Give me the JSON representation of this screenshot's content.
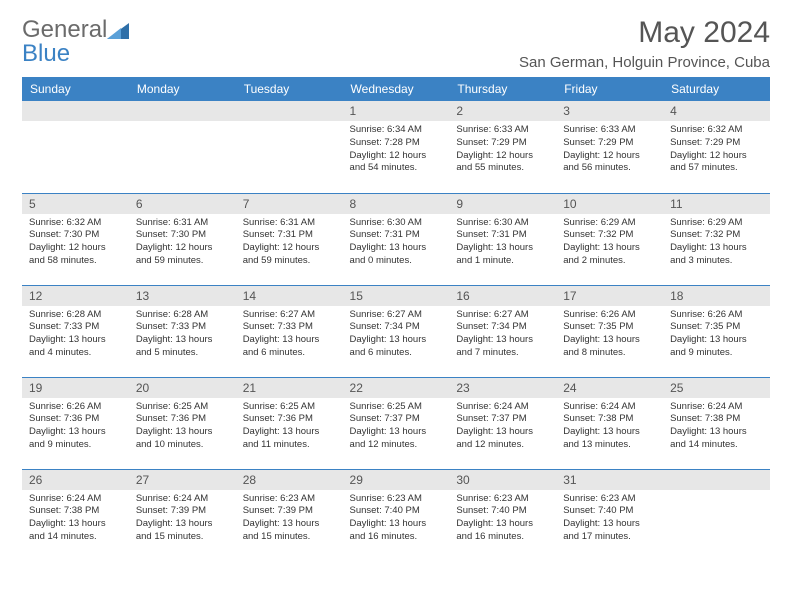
{
  "brand": {
    "part1": "General",
    "part2": "Blue"
  },
  "title": "May 2024",
  "location": "San German, Holguin Province, Cuba",
  "colors": {
    "header_bg": "#3b82c4",
    "header_text": "#ffffff",
    "daynum_bg": "#e7e7e7",
    "text": "#333333",
    "muted": "#555555",
    "row_border": "#3b82c4",
    "page_bg": "#ffffff"
  },
  "typography": {
    "title_fontsize": 30,
    "location_fontsize": 15,
    "dayheader_fontsize": 12,
    "daynum_fontsize": 12,
    "body_fontsize": 9.5
  },
  "dayHeaders": [
    "Sunday",
    "Monday",
    "Tuesday",
    "Wednesday",
    "Thursday",
    "Friday",
    "Saturday"
  ],
  "weeks": [
    [
      null,
      null,
      null,
      {
        "n": "1",
        "sr": "Sunrise: 6:34 AM",
        "ss": "Sunset: 7:28 PM",
        "dl1": "Daylight: 12 hours",
        "dl2": "and 54 minutes."
      },
      {
        "n": "2",
        "sr": "Sunrise: 6:33 AM",
        "ss": "Sunset: 7:29 PM",
        "dl1": "Daylight: 12 hours",
        "dl2": "and 55 minutes."
      },
      {
        "n": "3",
        "sr": "Sunrise: 6:33 AM",
        "ss": "Sunset: 7:29 PM",
        "dl1": "Daylight: 12 hours",
        "dl2": "and 56 minutes."
      },
      {
        "n": "4",
        "sr": "Sunrise: 6:32 AM",
        "ss": "Sunset: 7:29 PM",
        "dl1": "Daylight: 12 hours",
        "dl2": "and 57 minutes."
      }
    ],
    [
      {
        "n": "5",
        "sr": "Sunrise: 6:32 AM",
        "ss": "Sunset: 7:30 PM",
        "dl1": "Daylight: 12 hours",
        "dl2": "and 58 minutes."
      },
      {
        "n": "6",
        "sr": "Sunrise: 6:31 AM",
        "ss": "Sunset: 7:30 PM",
        "dl1": "Daylight: 12 hours",
        "dl2": "and 59 minutes."
      },
      {
        "n": "7",
        "sr": "Sunrise: 6:31 AM",
        "ss": "Sunset: 7:31 PM",
        "dl1": "Daylight: 12 hours",
        "dl2": "and 59 minutes."
      },
      {
        "n": "8",
        "sr": "Sunrise: 6:30 AM",
        "ss": "Sunset: 7:31 PM",
        "dl1": "Daylight: 13 hours",
        "dl2": "and 0 minutes."
      },
      {
        "n": "9",
        "sr": "Sunrise: 6:30 AM",
        "ss": "Sunset: 7:31 PM",
        "dl1": "Daylight: 13 hours",
        "dl2": "and 1 minute."
      },
      {
        "n": "10",
        "sr": "Sunrise: 6:29 AM",
        "ss": "Sunset: 7:32 PM",
        "dl1": "Daylight: 13 hours",
        "dl2": "and 2 minutes."
      },
      {
        "n": "11",
        "sr": "Sunrise: 6:29 AM",
        "ss": "Sunset: 7:32 PM",
        "dl1": "Daylight: 13 hours",
        "dl2": "and 3 minutes."
      }
    ],
    [
      {
        "n": "12",
        "sr": "Sunrise: 6:28 AM",
        "ss": "Sunset: 7:33 PM",
        "dl1": "Daylight: 13 hours",
        "dl2": "and 4 minutes."
      },
      {
        "n": "13",
        "sr": "Sunrise: 6:28 AM",
        "ss": "Sunset: 7:33 PM",
        "dl1": "Daylight: 13 hours",
        "dl2": "and 5 minutes."
      },
      {
        "n": "14",
        "sr": "Sunrise: 6:27 AM",
        "ss": "Sunset: 7:33 PM",
        "dl1": "Daylight: 13 hours",
        "dl2": "and 6 minutes."
      },
      {
        "n": "15",
        "sr": "Sunrise: 6:27 AM",
        "ss": "Sunset: 7:34 PM",
        "dl1": "Daylight: 13 hours",
        "dl2": "and 6 minutes."
      },
      {
        "n": "16",
        "sr": "Sunrise: 6:27 AM",
        "ss": "Sunset: 7:34 PM",
        "dl1": "Daylight: 13 hours",
        "dl2": "and 7 minutes."
      },
      {
        "n": "17",
        "sr": "Sunrise: 6:26 AM",
        "ss": "Sunset: 7:35 PM",
        "dl1": "Daylight: 13 hours",
        "dl2": "and 8 minutes."
      },
      {
        "n": "18",
        "sr": "Sunrise: 6:26 AM",
        "ss": "Sunset: 7:35 PM",
        "dl1": "Daylight: 13 hours",
        "dl2": "and 9 minutes."
      }
    ],
    [
      {
        "n": "19",
        "sr": "Sunrise: 6:26 AM",
        "ss": "Sunset: 7:36 PM",
        "dl1": "Daylight: 13 hours",
        "dl2": "and 9 minutes."
      },
      {
        "n": "20",
        "sr": "Sunrise: 6:25 AM",
        "ss": "Sunset: 7:36 PM",
        "dl1": "Daylight: 13 hours",
        "dl2": "and 10 minutes."
      },
      {
        "n": "21",
        "sr": "Sunrise: 6:25 AM",
        "ss": "Sunset: 7:36 PM",
        "dl1": "Daylight: 13 hours",
        "dl2": "and 11 minutes."
      },
      {
        "n": "22",
        "sr": "Sunrise: 6:25 AM",
        "ss": "Sunset: 7:37 PM",
        "dl1": "Daylight: 13 hours",
        "dl2": "and 12 minutes."
      },
      {
        "n": "23",
        "sr": "Sunrise: 6:24 AM",
        "ss": "Sunset: 7:37 PM",
        "dl1": "Daylight: 13 hours",
        "dl2": "and 12 minutes."
      },
      {
        "n": "24",
        "sr": "Sunrise: 6:24 AM",
        "ss": "Sunset: 7:38 PM",
        "dl1": "Daylight: 13 hours",
        "dl2": "and 13 minutes."
      },
      {
        "n": "25",
        "sr": "Sunrise: 6:24 AM",
        "ss": "Sunset: 7:38 PM",
        "dl1": "Daylight: 13 hours",
        "dl2": "and 14 minutes."
      }
    ],
    [
      {
        "n": "26",
        "sr": "Sunrise: 6:24 AM",
        "ss": "Sunset: 7:38 PM",
        "dl1": "Daylight: 13 hours",
        "dl2": "and 14 minutes."
      },
      {
        "n": "27",
        "sr": "Sunrise: 6:24 AM",
        "ss": "Sunset: 7:39 PM",
        "dl1": "Daylight: 13 hours",
        "dl2": "and 15 minutes."
      },
      {
        "n": "28",
        "sr": "Sunrise: 6:23 AM",
        "ss": "Sunset: 7:39 PM",
        "dl1": "Daylight: 13 hours",
        "dl2": "and 15 minutes."
      },
      {
        "n": "29",
        "sr": "Sunrise: 6:23 AM",
        "ss": "Sunset: 7:40 PM",
        "dl1": "Daylight: 13 hours",
        "dl2": "and 16 minutes."
      },
      {
        "n": "30",
        "sr": "Sunrise: 6:23 AM",
        "ss": "Sunset: 7:40 PM",
        "dl1": "Daylight: 13 hours",
        "dl2": "and 16 minutes."
      },
      {
        "n": "31",
        "sr": "Sunrise: 6:23 AM",
        "ss": "Sunset: 7:40 PM",
        "dl1": "Daylight: 13 hours",
        "dl2": "and 17 minutes."
      },
      null
    ]
  ]
}
